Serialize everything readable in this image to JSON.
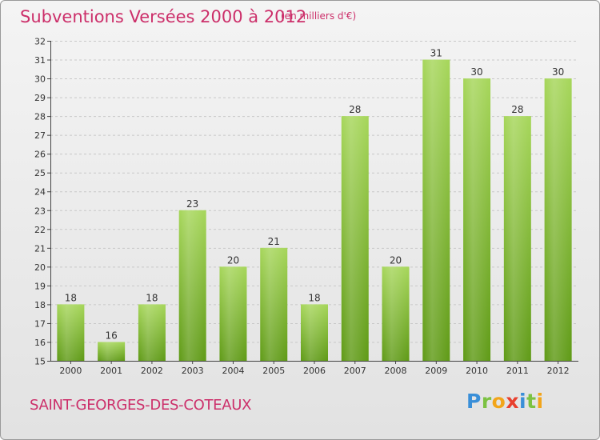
{
  "title": "Subventions Versées 2000 à 2012",
  "subtitle": "(en milliers d'€)",
  "commune": "SAINT-GEORGES-DES-COTEAUX",
  "brand": {
    "letters": [
      "P",
      "r",
      "o",
      "x",
      "i",
      "t",
      "i"
    ],
    "colors": [
      "#3a8fd8",
      "#7cc242",
      "#f2a51a",
      "#e8402e",
      "#3a8fd8",
      "#7cc242",
      "#f2a51a"
    ]
  },
  "colors": {
    "bar_top": "#a6d65a",
    "bar_bottom": "#5f9a16",
    "grid": "#c8c8c8",
    "title": "#cc2f6a"
  },
  "chart_data": {
    "type": "bar",
    "title": "Subventions Versées 2000 à 2012",
    "categories": [
      "2000",
      "2001",
      "2002",
      "2003",
      "2004",
      "2005",
      "2006",
      "2007",
      "2008",
      "2009",
      "2010",
      "2011",
      "2012"
    ],
    "values": [
      18,
      16,
      18,
      23,
      20,
      21,
      18,
      28,
      20,
      31,
      30,
      28,
      30
    ],
    "ylim": [
      15,
      32
    ],
    "yticks": [
      15,
      16,
      17,
      18,
      19,
      20,
      21,
      22,
      23,
      24,
      25,
      26,
      27,
      28,
      29,
      30,
      31,
      32
    ],
    "xlabel": "",
    "ylabel": "",
    "grid": true
  }
}
